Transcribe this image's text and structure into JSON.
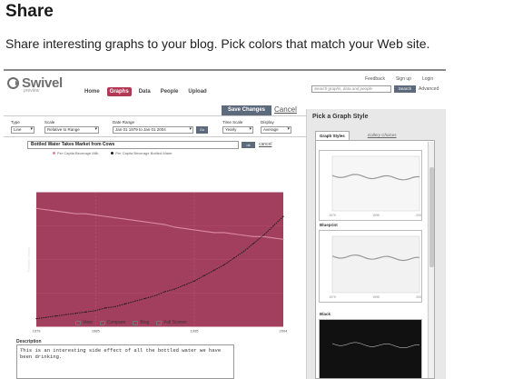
{
  "page": {
    "heading": "Share",
    "intro": "Share interesting graphs to your blog. Pick colors that match your Web site."
  },
  "app": {
    "logo_text": "Swivel",
    "logo_tagline": "preview",
    "nav": [
      "Home",
      "Graphs",
      "Data",
      "People",
      "Upload"
    ],
    "active_nav": "Graphs",
    "top_links": [
      "Feedback",
      "Sign up",
      "Login"
    ],
    "search_placeholder": "Search graphs, data and people",
    "search_button": "Search",
    "advanced_link": "Advanced"
  },
  "toolbar": {
    "save_label": "Save Changes",
    "cancel_label": "Cancel"
  },
  "controls": {
    "type_label": "Type",
    "type_value": "Line",
    "scale_label": "Scale",
    "scale_value": "Relative to Range",
    "date_label": "Date Range",
    "date_value": "Jan 01 1979 to Jan 01 2004",
    "go_label": "Go",
    "timescale_label": "Time Scale",
    "timescale_value": "Yearly",
    "display_label": "Display",
    "display_value": "Average"
  },
  "graph": {
    "title_value": "Bottled Water Takes Market from Cows",
    "ok_label": "ok",
    "cancel_label": "cancel",
    "legend": [
      {
        "name": "Per Capita Beverage Milk",
        "color": "#d98aa0"
      },
      {
        "name": "Per Capita Beverage Bottled Water",
        "color": "#1c1c1c"
      }
    ],
    "actions": [
      "View",
      "Compare",
      "Blog",
      "Full Screen"
    ]
  },
  "chart_data": {
    "type": "line",
    "title": "",
    "ylabel": "Relative Values",
    "x_ticks": [
      "1979",
      "1985",
      "1995",
      "2004"
    ],
    "x": [
      1979,
      1980,
      1981,
      1982,
      1983,
      1984,
      1985,
      1986,
      1987,
      1988,
      1989,
      1990,
      1991,
      1992,
      1993,
      1994,
      1995,
      1996,
      1997,
      1998,
      1999,
      2000,
      2001,
      2002,
      2003,
      2004
    ],
    "ylim": [
      0,
      100
    ],
    "grid": true,
    "legend_position": "top",
    "background_color": "#a33f5e",
    "series": [
      {
        "name": "Per Capita Beverage Milk",
        "color": "#d98aa0",
        "values": [
          88,
          87,
          86,
          85,
          84,
          84,
          83,
          82,
          81,
          80,
          79,
          78,
          77,
          76,
          74,
          73,
          72,
          71,
          70,
          70,
          69,
          68,
          67,
          67,
          66,
          65
        ]
      },
      {
        "name": "Per Capita Beverage Bottled Water",
        "color": "#1c1c1c",
        "values": [
          6,
          7,
          8,
          9,
          10,
          11,
          12,
          14,
          15,
          17,
          19,
          21,
          23,
          26,
          28,
          31,
          34,
          38,
          42,
          46,
          51,
          56,
          62,
          68,
          75,
          82
        ]
      }
    ]
  },
  "description": {
    "label": "Description",
    "text": "This is an interesting side effect of all the bottled water we have been drinking."
  },
  "sidebar": {
    "title": "Pick a Graph Style",
    "tabs": [
      "Graph Styles",
      "Gallery Choices"
    ],
    "active_tab": "Graph Styles",
    "styles": [
      "",
      "Blueprint",
      "Black"
    ],
    "style_backgrounds": [
      "#ffffff",
      "#ffffff",
      "#111111"
    ]
  }
}
